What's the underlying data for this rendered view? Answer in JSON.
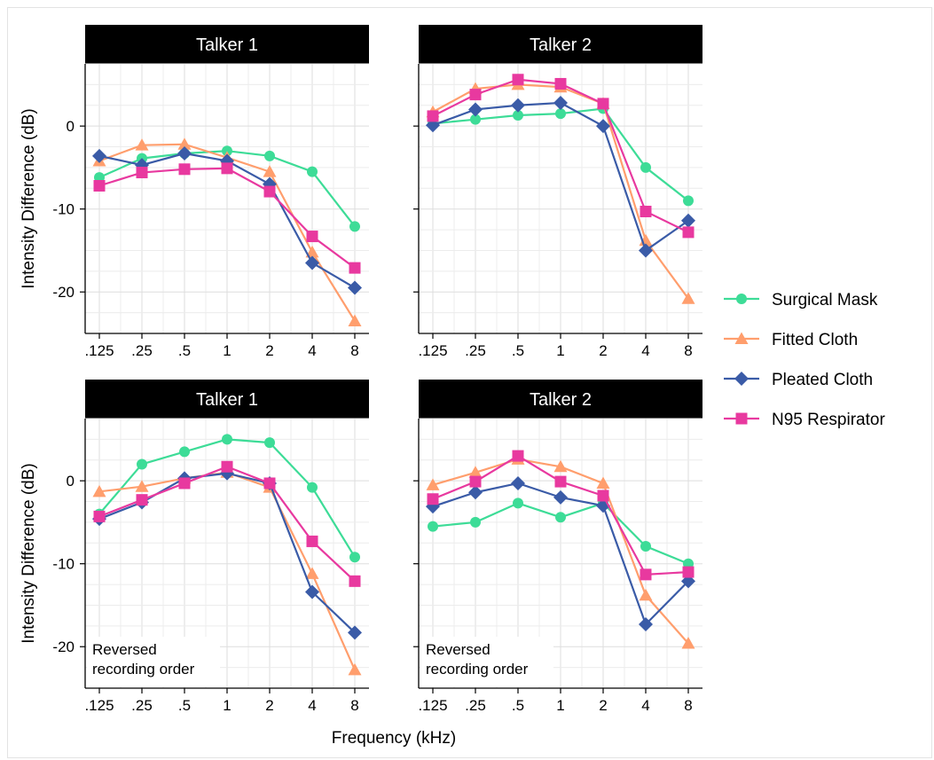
{
  "chart_data": {
    "type": "line",
    "x_tick_labels": [
      ".125",
      ".25",
      ".5",
      "1",
      "2",
      "4",
      "8"
    ],
    "x_values_khz": [
      0.125,
      0.25,
      0.5,
      1,
      2,
      4,
      8
    ],
    "x_scale": "log2",
    "xlabel": "Frequency (kHz)",
    "ylabel": "Intensity Difference (dB)",
    "y_ticks": [
      0,
      -10,
      -20
    ],
    "grid": true,
    "legend_position": "right",
    "series_styles": [
      {
        "name": "Surgical Mask",
        "color": "#3ddc97",
        "marker": "circle"
      },
      {
        "name": "Fitted Cloth",
        "color": "#ff9e6d",
        "marker": "triangle"
      },
      {
        "name": "Pleated Cloth",
        "color": "#3a5ba7",
        "marker": "diamond"
      },
      {
        "name": "N95 Respirator",
        "color": "#e8399f",
        "marker": "square"
      }
    ],
    "panels": [
      {
        "title": "Talker 1",
        "annotation": "",
        "ylim": [
          -25,
          7.5
        ],
        "series": [
          {
            "name": "Surgical Mask",
            "values": [
              -6.2,
              -3.9,
              -3.3,
              -3.0,
              -3.6,
              -5.5,
              -12.1
            ]
          },
          {
            "name": "Fitted Cloth",
            "values": [
              -4.2,
              -2.3,
              -2.2,
              -3.8,
              -5.5,
              -15.2,
              -23.5
            ]
          },
          {
            "name": "Pleated Cloth",
            "values": [
              -3.6,
              -4.7,
              -3.3,
              -4.2,
              -7.0,
              -16.5,
              -19.5
            ]
          },
          {
            "name": "N95 Respirator",
            "values": [
              -7.2,
              -5.6,
              -5.2,
              -5.1,
              -7.9,
              -13.3,
              -17.1
            ]
          }
        ]
      },
      {
        "title": "Talker 2",
        "annotation": "",
        "ylim": [
          -25,
          7.5
        ],
        "series": [
          {
            "name": "Surgical Mask",
            "values": [
              0.3,
              0.8,
              1.3,
              1.5,
              2.1,
              -5.0,
              -9.0
            ]
          },
          {
            "name": "Fitted Cloth",
            "values": [
              1.7,
              4.5,
              5.0,
              4.7,
              2.7,
              -13.8,
              -20.8
            ]
          },
          {
            "name": "Pleated Cloth",
            "values": [
              0.1,
              2.0,
              2.5,
              2.8,
              0.0,
              -15.0,
              -11.4
            ]
          },
          {
            "name": "N95 Respirator",
            "values": [
              1.2,
              3.8,
              5.6,
              5.1,
              2.7,
              -10.3,
              -12.8
            ]
          }
        ]
      },
      {
        "title": "Talker 1",
        "annotation": "Reversed\nrecording order",
        "ylim": [
          -25,
          7.5
        ],
        "series": [
          {
            "name": "Surgical Mask",
            "values": [
              -4.0,
              2.0,
              3.5,
              5.0,
              4.6,
              -0.8,
              -9.2
            ]
          },
          {
            "name": "Fitted Cloth",
            "values": [
              -1.3,
              -0.7,
              0.3,
              1.0,
              -0.8,
              -11.2,
              -22.8
            ]
          },
          {
            "name": "Pleated Cloth",
            "values": [
              -4.6,
              -2.6,
              0.3,
              0.9,
              -0.3,
              -13.4,
              -18.3
            ]
          },
          {
            "name": "N95 Respirator",
            "values": [
              -4.3,
              -2.3,
              -0.3,
              1.7,
              -0.3,
              -7.3,
              -12.1
            ]
          }
        ]
      },
      {
        "title": "Talker 2",
        "annotation": "Reversed\nrecording order",
        "ylim": [
          -25,
          7.5
        ],
        "series": [
          {
            "name": "Surgical Mask",
            "values": [
              -5.5,
              -5.0,
              -2.7,
              -4.4,
              -2.7,
              -7.9,
              -10.0
            ]
          },
          {
            "name": "Fitted Cloth",
            "values": [
              -0.5,
              1.0,
              2.6,
              1.7,
              -0.3,
              -13.8,
              -19.6
            ]
          },
          {
            "name": "Pleated Cloth",
            "values": [
              -3.1,
              -1.4,
              -0.3,
              -2.0,
              -3.0,
              -17.3,
              -12.1
            ]
          },
          {
            "name": "N95 Respirator",
            "values": [
              -2.2,
              -0.1,
              3.0,
              -0.1,
              -1.8,
              -11.3,
              -11.0
            ]
          }
        ]
      }
    ]
  }
}
